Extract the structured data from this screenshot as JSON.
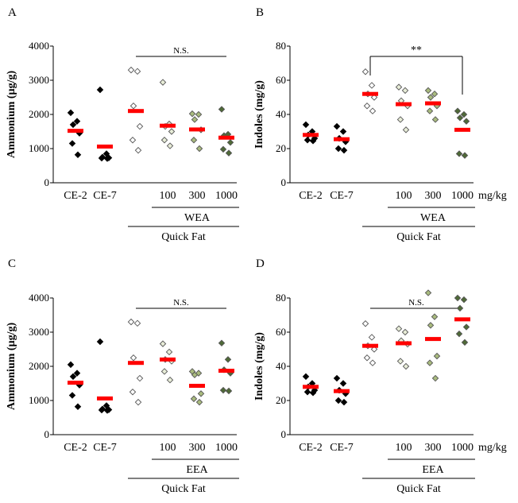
{
  "chart_data": [
    {
      "type": "scatter",
      "panel": "A",
      "ylabel": "Ammonium (µg/g)",
      "ylim": [
        0,
        4000
      ],
      "yticks": [
        "0",
        "1000",
        "2000",
        "3000",
        "4000"
      ],
      "categories": [
        "CE-2",
        "CE-7",
        "",
        "100",
        "300",
        "1000"
      ],
      "unit_label": "",
      "group_label": "WEA",
      "diet_label": "Quick Fat",
      "significance": {
        "text": "N.S.",
        "bracket": false,
        "from": 2,
        "to": 5
      },
      "groups": [
        {
          "fill": "#000000",
          "values": [
            2050,
            1800,
            1700,
            1450,
            1150,
            820
          ],
          "mean": 1520
        },
        {
          "fill": "#000000",
          "values": [
            2720,
            850,
            750,
            730,
            720,
            710
          ],
          "mean": 1060
        },
        {
          "fill": "#ffffff",
          "values": [
            3300,
            3260,
            2250,
            1650,
            1250,
            950
          ],
          "mean": 2100
        },
        {
          "fill": "#e8edd8",
          "values": [
            2940,
            1720,
            1650,
            1500,
            1250,
            1080
          ],
          "mean": 1670
        },
        {
          "fill": "#a9bb7e",
          "values": [
            2020,
            2000,
            1850,
            1550,
            1250,
            1000
          ],
          "mean": 1560
        },
        {
          "fill": "#4f6a37",
          "values": [
            2150,
            1420,
            1380,
            1180,
            980,
            870
          ],
          "mean": 1320
        }
      ]
    },
    {
      "type": "scatter",
      "panel": "B",
      "ylabel": "Indoles (mg/g)",
      "ylim": [
        0,
        80
      ],
      "yticks": [
        "0",
        "20",
        "40",
        "60",
        "80"
      ],
      "categories": [
        "CE-2",
        "CE-7",
        "",
        "100",
        "300",
        "1000"
      ],
      "unit_label": "mg/kg",
      "group_label": "WEA",
      "diet_label": "Quick Fat",
      "significance": {
        "text": "**",
        "bracket": true,
        "from": 2,
        "to": 5
      },
      "groups": [
        {
          "fill": "#000000",
          "values": [
            34,
            30,
            28,
            26,
            25,
            24.5
          ],
          "mean": 28
        },
        {
          "fill": "#000000",
          "values": [
            33,
            30,
            26,
            24,
            20,
            19
          ],
          "mean": 25.5
        },
        {
          "fill": "#ffffff",
          "values": [
            65,
            57,
            52,
            50,
            45,
            42
          ],
          "mean": 52
        },
        {
          "fill": "#e8edd8",
          "values": [
            56,
            54,
            48,
            45,
            37,
            31
          ],
          "mean": 46
        },
        {
          "fill": "#a9bb7e",
          "values": [
            54,
            52,
            50,
            45,
            42,
            37
          ],
          "mean": 46.5
        },
        {
          "fill": "#4f6a37",
          "values": [
            42,
            40,
            38,
            36,
            17,
            16
          ],
          "mean": 31
        }
      ]
    },
    {
      "type": "scatter",
      "panel": "C",
      "ylabel": "Ammonium (µg/g)",
      "ylim": [
        0,
        4000
      ],
      "yticks": [
        "0",
        "1000",
        "2000",
        "3000",
        "4000"
      ],
      "categories": [
        "CE-2",
        "CE-7",
        "",
        "100",
        "300",
        "1000"
      ],
      "unit_label": "",
      "group_label": "EEA",
      "diet_label": "Quick Fat",
      "significance": {
        "text": "N.S.",
        "bracket": false,
        "from": 2,
        "to": 5
      },
      "groups": [
        {
          "fill": "#000000",
          "values": [
            2050,
            1800,
            1700,
            1450,
            1150,
            820
          ],
          "mean": 1520
        },
        {
          "fill": "#000000",
          "values": [
            2720,
            850,
            750,
            730,
            720,
            710
          ],
          "mean": 1060
        },
        {
          "fill": "#ffffff",
          "values": [
            3300,
            3260,
            2250,
            1650,
            1250,
            950
          ],
          "mean": 2100
        },
        {
          "fill": "#e8edd8",
          "values": [
            2660,
            2420,
            2200,
            2150,
            1850,
            1600
          ],
          "mean": 2200
        },
        {
          "fill": "#a9bb7e",
          "values": [
            1850,
            1800,
            1750,
            1200,
            1050,
            950
          ],
          "mean": 1430
        },
        {
          "fill": "#4f6a37",
          "values": [
            2680,
            2200,
            1900,
            1800,
            1300,
            1280
          ],
          "mean": 1870
        }
      ]
    },
    {
      "type": "scatter",
      "panel": "D",
      "ylabel": "Indoles (mg/g)",
      "ylim": [
        0,
        80
      ],
      "yticks": [
        "0",
        "20",
        "40",
        "60",
        "80"
      ],
      "categories": [
        "CE-2",
        "CE-7",
        "",
        "100",
        "300",
        "1000"
      ],
      "unit_label": "mg/kg",
      "group_label": "EEA",
      "diet_label": "Quick Fat",
      "significance": {
        "text": "N.S.",
        "bracket": false,
        "from": 2,
        "to": 5
      },
      "groups": [
        {
          "fill": "#000000",
          "values": [
            34,
            30,
            28,
            26,
            25,
            24.5
          ],
          "mean": 28
        },
        {
          "fill": "#000000",
          "values": [
            33,
            30,
            26,
            24,
            20,
            19
          ],
          "mean": 25.5
        },
        {
          "fill": "#ffffff",
          "values": [
            65,
            57,
            52,
            50,
            45,
            42
          ],
          "mean": 52
        },
        {
          "fill": "#e8edd8",
          "values": [
            62,
            60,
            55,
            53,
            43,
            40
          ],
          "mean": 53.5
        },
        {
          "fill": "#a9bb7e",
          "values": [
            83,
            69,
            64,
            46,
            42,
            33
          ],
          "mean": 56
        },
        {
          "fill": "#4f6a37",
          "values": [
            80,
            79,
            74,
            63,
            59,
            54
          ],
          "mean": 67.5
        }
      ]
    }
  ],
  "mean_color": "#ff0000"
}
